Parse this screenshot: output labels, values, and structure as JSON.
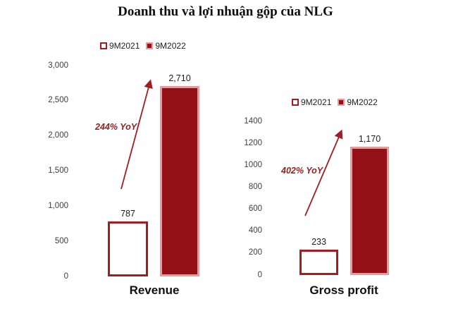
{
  "title": "Doanh thu và lợi nhuận gộp của NLG",
  "colors": {
    "bar_2021_fill": "#FFFFFF",
    "bar_2021_border": "#A21C20",
    "bar_2022_fill": "#931016",
    "bar_2022_border": "#E79B9D",
    "arrow": "#A21C20",
    "annotation_text": "#9E1B1E",
    "axis_text": "#3D3D3D",
    "data_label_text": "#1A1A1A"
  },
  "legend": {
    "items": [
      {
        "label": "9M2021",
        "swatch": "outline-square"
      },
      {
        "label": "9M2022",
        "swatch": "filled-square"
      }
    ]
  },
  "chart_data": [
    {
      "type": "bar",
      "title": "Revenue",
      "categories": [
        "9M2021",
        "9M2022"
      ],
      "values": [
        787,
        2710
      ],
      "value_labels": [
        "787",
        "2,710"
      ],
      "annotation": "244% YoY",
      "ylim": [
        0,
        3000
      ],
      "ytick_step": 500,
      "yticks": [
        "0",
        "500",
        "1,000",
        "1,500",
        "2,000",
        "2,500",
        "3,000"
      ],
      "grid": false,
      "legend_position": "top-center",
      "annotation_style": "red-growth-arrow"
    },
    {
      "type": "bar",
      "title": "Gross profit",
      "categories": [
        "9M2021",
        "9M2022"
      ],
      "values": [
        233,
        1170
      ],
      "value_labels": [
        "233",
        "1,170"
      ],
      "annotation": "402% YoY",
      "ylim": [
        0,
        1400
      ],
      "ytick_step": 200,
      "yticks": [
        "0",
        "200",
        "400",
        "600",
        "800",
        "1000",
        "1200",
        "1400"
      ],
      "grid": false,
      "legend_position": "top-center",
      "annotation_style": "red-growth-arrow"
    }
  ]
}
